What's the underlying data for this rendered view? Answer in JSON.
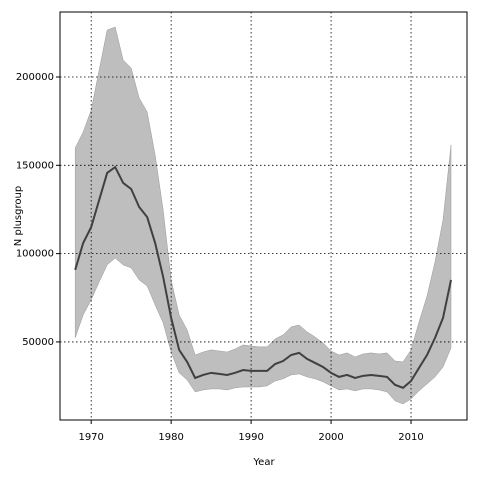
{
  "chart_data": {
    "type": "line",
    "xlabel": "Year",
    "ylabel": "N plusgroup",
    "x": [
      1968,
      1969,
      1970,
      1971,
      1972,
      1973,
      1974,
      1975,
      1976,
      1977,
      1978,
      1979,
      1980,
      1981,
      1982,
      1983,
      1984,
      1985,
      1986,
      1987,
      1988,
      1989,
      1990,
      1991,
      1992,
      1993,
      1994,
      1995,
      1996,
      1997,
      1998,
      1999,
      2000,
      2001,
      2002,
      2003,
      2004,
      2005,
      2006,
      2007,
      2008,
      2009,
      2010,
      2011,
      2012,
      2013,
      2014,
      2015
    ],
    "values": [
      90800,
      106000,
      115000,
      130400,
      145700,
      149000,
      140000,
      136600,
      126400,
      120700,
      106000,
      86800,
      63600,
      45500,
      38700,
      29600,
      31300,
      32500,
      31900,
      31300,
      32500,
      34100,
      33600,
      33600,
      33600,
      37500,
      39200,
      42600,
      43800,
      40400,
      38100,
      35800,
      32500,
      30200,
      31300,
      29600,
      30800,
      31300,
      30800,
      30200,
      25700,
      24000,
      27900,
      35300,
      42600,
      52300,
      63600,
      85100
    ],
    "upper": [
      159800,
      168900,
      181300,
      204000,
      226600,
      228300,
      209600,
      205100,
      188100,
      180200,
      155800,
      124700,
      85100,
      65300,
      56800,
      42600,
      44300,
      45500,
      44900,
      44300,
      46000,
      48300,
      47700,
      47200,
      47200,
      51700,
      54000,
      58500,
      59600,
      55700,
      52800,
      49400,
      44900,
      42600,
      43800,
      41500,
      43200,
      43800,
      43200,
      43800,
      39200,
      38700,
      45500,
      61300,
      76000,
      95300,
      119100,
      161500
    ],
    "lower": [
      52300,
      65300,
      73800,
      84000,
      93600,
      97500,
      93600,
      91900,
      85100,
      81700,
      70900,
      60800,
      44300,
      32500,
      28500,
      21700,
      22800,
      23400,
      23400,
      22800,
      24000,
      24500,
      24500,
      24500,
      25100,
      27900,
      29100,
      31300,
      31900,
      30200,
      29100,
      27400,
      25100,
      22800,
      23400,
      22300,
      23400,
      23400,
      22800,
      21700,
      16600,
      14900,
      17700,
      22300,
      26200,
      30200,
      35800,
      46600
    ],
    "color": "#404040",
    "band_color": "#bebebe",
    "xlim": [
      1966.1,
      2017
    ],
    "ylim": [
      5800,
      236800
    ],
    "xticks": [
      1970,
      1980,
      1990,
      2000,
      2010
    ],
    "yticks": [
      50000,
      100000,
      150000,
      200000
    ],
    "grid": true
  }
}
